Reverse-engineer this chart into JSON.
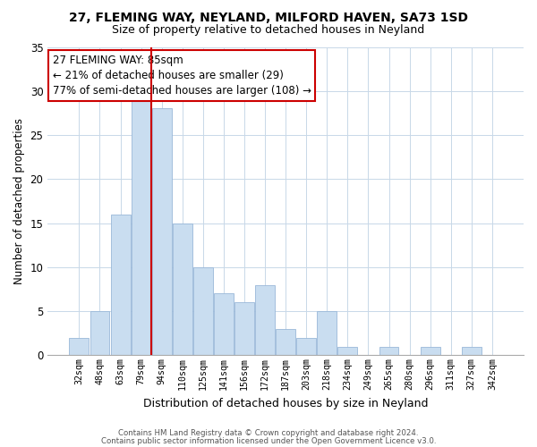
{
  "title1": "27, FLEMING WAY, NEYLAND, MILFORD HAVEN, SA73 1SD",
  "title2": "Size of property relative to detached houses in Neyland",
  "xlabel": "Distribution of detached houses by size in Neyland",
  "ylabel": "Number of detached properties",
  "bar_labels": [
    "32sqm",
    "48sqm",
    "63sqm",
    "79sqm",
    "94sqm",
    "110sqm",
    "125sqm",
    "141sqm",
    "156sqm",
    "172sqm",
    "187sqm",
    "203sqm",
    "218sqm",
    "234sqm",
    "249sqm",
    "265sqm",
    "280sqm",
    "296sqm",
    "311sqm",
    "327sqm",
    "342sqm"
  ],
  "bar_values": [
    2,
    5,
    16,
    29,
    28,
    15,
    10,
    7,
    6,
    8,
    3,
    2,
    5,
    1,
    0,
    1,
    0,
    1,
    0,
    1,
    0
  ],
  "bar_color": "#c9ddf0",
  "bar_edge_color": "#9ab8d8",
  "marker_line_color": "#cc0000",
  "ylim": [
    0,
    35
  ],
  "yticks": [
    0,
    5,
    10,
    15,
    20,
    25,
    30,
    35
  ],
  "annotation_line1": "27 FLEMING WAY: 85sqm",
  "annotation_line2": "← 21% of detached houses are smaller (29)",
  "annotation_line3": "77% of semi-detached houses are larger (108) →",
  "annotation_box_color": "#ffffff",
  "annotation_box_edge": "#cc0000",
  "footer1": "Contains HM Land Registry data © Crown copyright and database right 2024.",
  "footer2": "Contains public sector information licensed under the Open Government Licence v3.0.",
  "background_color": "#ffffff",
  "grid_color": "#c8d8e8"
}
